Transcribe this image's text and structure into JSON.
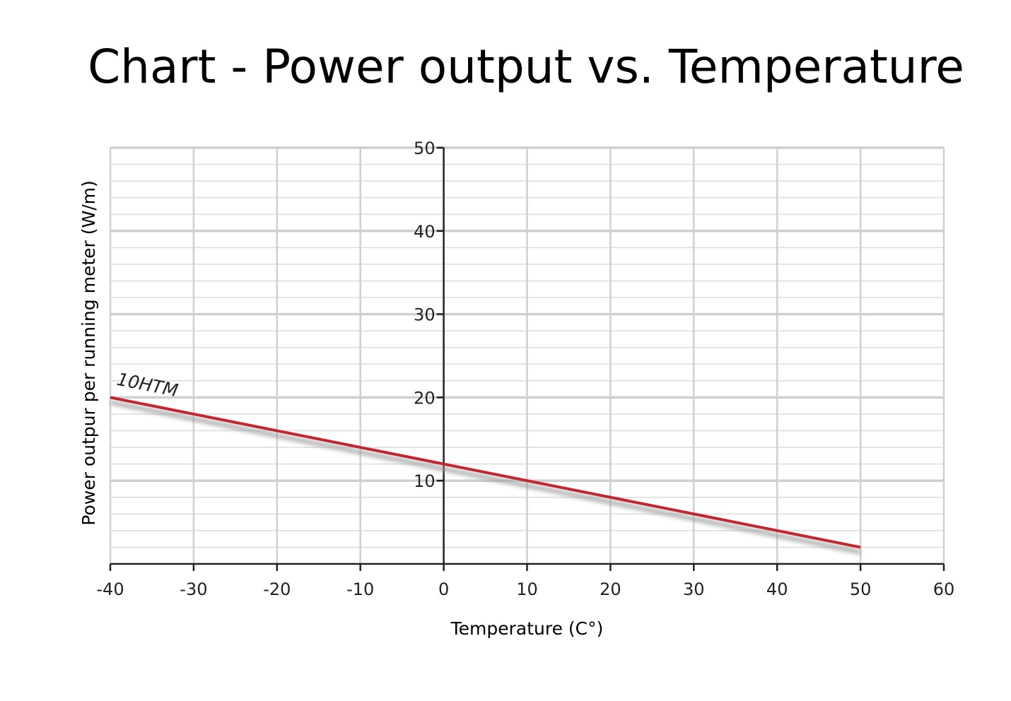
{
  "chart_data": {
    "type": "line",
    "title": "Chart - Power output vs. Temperature",
    "xlabel": "Temperature (C°)",
    "ylabel": "Power outpur per running meter (W/m)",
    "xlim": [
      -40,
      60
    ],
    "ylim": [
      0,
      50
    ],
    "x_ticks": [
      -40,
      -30,
      -20,
      -10,
      0,
      10,
      20,
      30,
      40,
      50,
      60
    ],
    "x_tick_labels": [
      "-40",
      "-30",
      "-20",
      "-10",
      "0",
      "10",
      "20",
      "30",
      "40",
      "50",
      "60"
    ],
    "y_ticks": [
      10,
      20,
      30,
      40,
      50
    ],
    "y_tick_labels": [
      "10",
      "20",
      "30",
      "40",
      "50"
    ],
    "grid": true,
    "series": [
      {
        "name": "10HTM",
        "color": "#c1272d",
        "x": [
          -40,
          50
        ],
        "y": [
          20,
          2
        ]
      }
    ]
  }
}
